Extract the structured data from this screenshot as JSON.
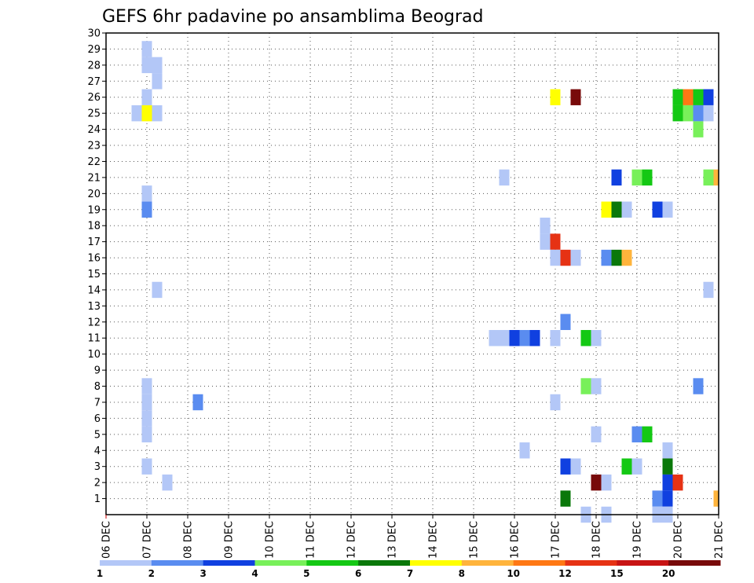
{
  "chart_data": {
    "type": "heatmap",
    "title": "GEFS 6hr padavine po ansamblima Beograd",
    "x_ticks": [
      "06 DEC",
      "07 DEC",
      "08 DEC",
      "09 DEC",
      "10 DEC",
      "11 DEC",
      "12 DEC",
      "13 DEC",
      "14 DEC",
      "15 DEC",
      "16 DEC",
      "17 DEC",
      "18 DEC",
      "19 DEC",
      "20 DEC",
      "21 DEC"
    ],
    "y_ticks": [
      "1",
      "2",
      "3",
      "4",
      "5",
      "6",
      "7",
      "8",
      "9",
      "10",
      "11",
      "12",
      "13",
      "14",
      "15",
      "16",
      "17",
      "18",
      "19",
      "20",
      "21",
      "22",
      "23",
      "24",
      "25",
      "26",
      "27",
      "28",
      "29",
      "30"
    ],
    "xlim": [
      0,
      15
    ],
    "ylim": [
      0,
      30
    ],
    "grid": true,
    "colorbar": {
      "labels": [
        "1",
        "2",
        "3",
        "4",
        "5",
        "6",
        "7",
        "8",
        "10",
        "12",
        "15",
        "20"
      ],
      "colors": [
        "#b3c7f7",
        "#5a8cf0",
        "#1040e0",
        "#78f05a",
        "#14c814",
        "#0a780a",
        "#ffff00",
        "#ffb43c",
        "#ff7814",
        "#e63214",
        "#c81414",
        "#780a0a"
      ]
    },
    "cell_width_days": 0.25,
    "cells": [
      {
        "x": 1.0,
        "y": 29,
        "c": 0
      },
      {
        "x": 1.0,
        "y": 28,
        "c": 0
      },
      {
        "x": 1.25,
        "y": 28,
        "c": 0
      },
      {
        "x": 1.25,
        "y": 27,
        "c": 0
      },
      {
        "x": 1.0,
        "y": 26,
        "c": 0
      },
      {
        "x": 0.75,
        "y": 25,
        "c": 0
      },
      {
        "x": 1.0,
        "y": 25,
        "c": 6
      },
      {
        "x": 1.25,
        "y": 25,
        "c": 0
      },
      {
        "x": 1.0,
        "y": 20,
        "c": 0
      },
      {
        "x": 1.0,
        "y": 19,
        "c": 1
      },
      {
        "x": 1.25,
        "y": 14,
        "c": 0
      },
      {
        "x": 1.0,
        "y": 8,
        "c": 0
      },
      {
        "x": 1.0,
        "y": 7,
        "c": 0
      },
      {
        "x": 1.0,
        "y": 6,
        "c": 0
      },
      {
        "x": 1.0,
        "y": 5,
        "c": 0
      },
      {
        "x": 1.0,
        "y": 3,
        "c": 0
      },
      {
        "x": 1.5,
        "y": 2,
        "c": 0
      },
      {
        "x": 2.25,
        "y": 7,
        "c": 1
      },
      {
        "x": 11.0,
        "y": 26,
        "c": 6
      },
      {
        "x": 11.5,
        "y": 26,
        "c": 11
      },
      {
        "x": 14.0,
        "y": 26,
        "c": 4
      },
      {
        "x": 14.0,
        "y": 25,
        "c": 4
      },
      {
        "x": 14.25,
        "y": 26,
        "c": 8
      },
      {
        "x": 14.25,
        "y": 25,
        "c": 3
      },
      {
        "x": 14.5,
        "y": 26,
        "c": 4
      },
      {
        "x": 14.5,
        "y": 25,
        "c": 1
      },
      {
        "x": 14.75,
        "y": 26,
        "c": 2
      },
      {
        "x": 14.75,
        "y": 25,
        "c": 0
      },
      {
        "x": 14.5,
        "y": 24,
        "c": 3
      },
      {
        "x": 9.75,
        "y": 21,
        "c": 0
      },
      {
        "x": 12.5,
        "y": 21,
        "c": 2
      },
      {
        "x": 13.0,
        "y": 21,
        "c": 3
      },
      {
        "x": 13.25,
        "y": 21,
        "c": 4
      },
      {
        "x": 14.75,
        "y": 21,
        "c": 3
      },
      {
        "x": 15.0,
        "y": 21,
        "c": 7
      },
      {
        "x": 12.25,
        "y": 19,
        "c": 6
      },
      {
        "x": 12.5,
        "y": 19,
        "c": 5
      },
      {
        "x": 12.75,
        "y": 19,
        "c": 0
      },
      {
        "x": 13.5,
        "y": 19,
        "c": 2
      },
      {
        "x": 13.75,
        "y": 19,
        "c": 0
      },
      {
        "x": 10.75,
        "y": 18,
        "c": 0
      },
      {
        "x": 10.75,
        "y": 17,
        "c": 0
      },
      {
        "x": 11.0,
        "y": 17,
        "c": 9
      },
      {
        "x": 11.0,
        "y": 16,
        "c": 0
      },
      {
        "x": 11.25,
        "y": 16,
        "c": 9
      },
      {
        "x": 11.5,
        "y": 16,
        "c": 0
      },
      {
        "x": 12.25,
        "y": 16,
        "c": 1
      },
      {
        "x": 12.5,
        "y": 16,
        "c": 5
      },
      {
        "x": 12.75,
        "y": 16,
        "c": 7
      },
      {
        "x": 14.75,
        "y": 14,
        "c": 0
      },
      {
        "x": 11.25,
        "y": 12,
        "c": 1
      },
      {
        "x": 9.5,
        "y": 11,
        "c": 0
      },
      {
        "x": 9.75,
        "y": 11,
        "c": 0
      },
      {
        "x": 10.0,
        "y": 11,
        "c": 2
      },
      {
        "x": 10.25,
        "y": 11,
        "c": 1
      },
      {
        "x": 10.5,
        "y": 11,
        "c": 2
      },
      {
        "x": 11.0,
        "y": 11,
        "c": 0
      },
      {
        "x": 11.75,
        "y": 11,
        "c": 4
      },
      {
        "x": 12.0,
        "y": 11,
        "c": 0
      },
      {
        "x": 11.75,
        "y": 8,
        "c": 3
      },
      {
        "x": 12.0,
        "y": 8,
        "c": 0
      },
      {
        "x": 14.5,
        "y": 8,
        "c": 1
      },
      {
        "x": 11.0,
        "y": 7,
        "c": 0
      },
      {
        "x": 12.0,
        "y": 5,
        "c": 0
      },
      {
        "x": 13.0,
        "y": 5,
        "c": 1
      },
      {
        "x": 13.25,
        "y": 5,
        "c": 4
      },
      {
        "x": 10.25,
        "y": 4,
        "c": 0
      },
      {
        "x": 13.75,
        "y": 4,
        "c": 0
      },
      {
        "x": 11.25,
        "y": 3,
        "c": 2
      },
      {
        "x": 11.5,
        "y": 3,
        "c": 0
      },
      {
        "x": 12.75,
        "y": 3,
        "c": 4
      },
      {
        "x": 13.0,
        "y": 3,
        "c": 0
      },
      {
        "x": 13.75,
        "y": 3,
        "c": 5
      },
      {
        "x": 12.0,
        "y": 2,
        "c": 11
      },
      {
        "x": 12.25,
        "y": 2,
        "c": 0
      },
      {
        "x": 13.75,
        "y": 2,
        "c": 2
      },
      {
        "x": 14.0,
        "y": 2,
        "c": 9
      },
      {
        "x": 11.25,
        "y": 1,
        "c": 5
      },
      {
        "x": 13.5,
        "y": 1,
        "c": 1
      },
      {
        "x": 13.75,
        "y": 1,
        "c": 2
      },
      {
        "x": 15.0,
        "y": 1,
        "c": 7
      },
      {
        "x": 11.75,
        "y": 0,
        "c": 0
      },
      {
        "x": 12.25,
        "y": 0,
        "c": 0
      },
      {
        "x": 13.5,
        "y": 0,
        "c": 0
      },
      {
        "x": 13.75,
        "y": 0,
        "c": 0
      }
    ]
  }
}
